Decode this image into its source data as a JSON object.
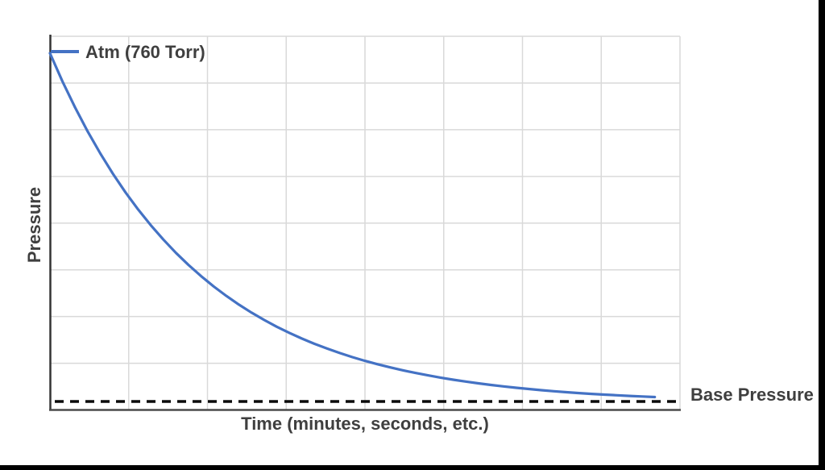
{
  "window": {
    "background": "#FFFFFF",
    "frame_bar_color": "#000000"
  },
  "chart_data": {
    "type": "line",
    "title": "",
    "xlabel": "Time (minutes, seconds, etc.)",
    "ylabel": "Pressure",
    "legend": {
      "label": "Atm (760 Torr)",
      "position": "top-left",
      "marker": "line"
    },
    "annotations": [
      {
        "text": "Base Pressure",
        "target": "dashed-baseline",
        "position": "right-of-plot"
      }
    ],
    "axes": {
      "x_ticks": [],
      "y_ticks": [],
      "grid": true,
      "x_gridline_intervals": 8,
      "y_gridline_intervals": 8,
      "x_range_norm": [
        0,
        1
      ],
      "y_range_torr": [
        0,
        810
      ]
    },
    "baseline": {
      "style": "dashed",
      "label": "Base Pressure",
      "pressure_torr": 0
    },
    "colors": {
      "series": "#4472C4",
      "grid": "#D9D9D9",
      "axis": "#4A4A4A",
      "baseline": "#0A0A0A",
      "text": "#3F3F3F"
    },
    "series": [
      {
        "name": "Atm (760 Torr)",
        "color": "#4472C4",
        "shape": "exponential-decay",
        "start_pressure_torr": 760,
        "x_time_norm": [
          0,
          0.02,
          0.04,
          0.06,
          0.08,
          0.1,
          0.12,
          0.14,
          0.16,
          0.18,
          0.2,
          0.22,
          0.24,
          0.26,
          0.28,
          0.3,
          0.32,
          0.34,
          0.36,
          0.38,
          0.4,
          0.42,
          0.44,
          0.46,
          0.48,
          0.5,
          0.52,
          0.54,
          0.56,
          0.58,
          0.6,
          0.62,
          0.64,
          0.66,
          0.68,
          0.7,
          0.72,
          0.74,
          0.76,
          0.78,
          0.8,
          0.82,
          0.84,
          0.86,
          0.88,
          0.9,
          0.92,
          0.94,
          0.96
        ],
        "pressure_torr": [
          760.0,
          698.4,
          641.8,
          589.8,
          542.0,
          498.0,
          457.6,
          420.5,
          386.4,
          355.1,
          326.3,
          299.9,
          275.6,
          253.2,
          232.7,
          213.8,
          196.5,
          180.6,
          165.9,
          152.5,
          140.1,
          128.7,
          118.3,
          108.7,
          99.9,
          91.8,
          84.4,
          77.5,
          71.2,
          65.5,
          60.2,
          55.3,
          50.8,
          46.7,
          42.9,
          39.4,
          36.2,
          33.3,
          30.6,
          28.1,
          25.8,
          23.7,
          21.8,
          20.0,
          18.4,
          16.9,
          15.6,
          14.3,
          13.1
        ]
      }
    ]
  }
}
